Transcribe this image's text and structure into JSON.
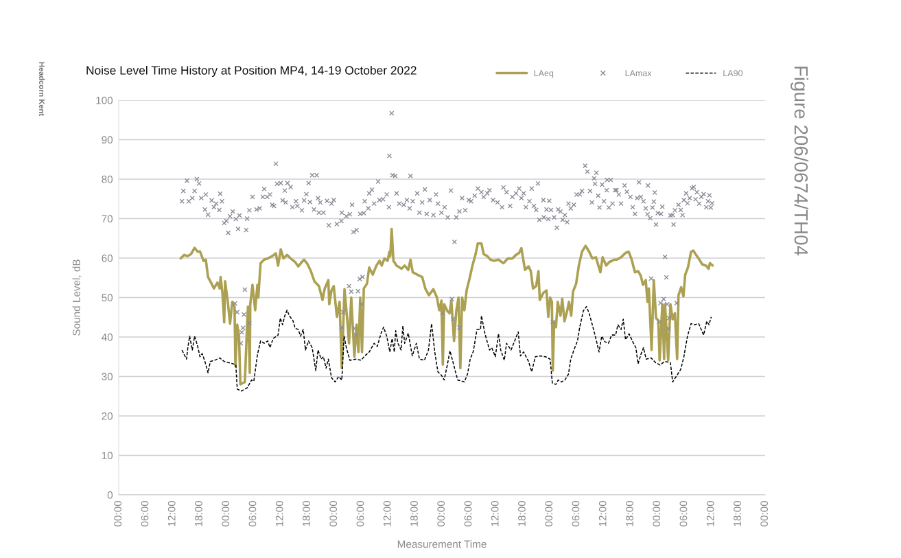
{
  "chart_data": {
    "type": "line",
    "title": "Noise Level Time History at Position MP4, 14-19 October 2022",
    "xlabel": "Measurement Time",
    "ylabel": "Sound Level, dB",
    "annotations": [
      "Headcorn Kent",
      "Figure 206/0674/TH04"
    ],
    "xlim": [
      "2022-10-14T00:00",
      "2022-10-20T00:00"
    ],
    "xticks": [
      {
        "value": "2022-10-14T00:00",
        "label": "00:00"
      },
      {
        "value": "2022-10-14T06:00",
        "label": "06:00"
      },
      {
        "value": "2022-10-14T12:00",
        "label": "12:00"
      },
      {
        "value": "2022-10-14T18:00",
        "label": "18:00"
      },
      {
        "value": "2022-10-15T00:00",
        "label": "00:00"
      },
      {
        "value": "2022-10-15T06:00",
        "label": "06:00"
      },
      {
        "value": "2022-10-15T12:00",
        "label": "12:00"
      },
      {
        "value": "2022-10-15T18:00",
        "label": "18:00"
      },
      {
        "value": "2022-10-16T00:00",
        "label": "00:00"
      },
      {
        "value": "2022-10-16T06:00",
        "label": "06:00"
      },
      {
        "value": "2022-10-16T12:00",
        "label": "12:00"
      },
      {
        "value": "2022-10-16T18:00",
        "label": "18:00"
      },
      {
        "value": "2022-10-17T00:00",
        "label": "00:00"
      },
      {
        "value": "2022-10-17T06:00",
        "label": "06:00"
      },
      {
        "value": "2022-10-17T12:00",
        "label": "12:00"
      },
      {
        "value": "2022-10-17T18:00",
        "label": "18:00"
      },
      {
        "value": "2022-10-18T00:00",
        "label": "00:00"
      },
      {
        "value": "2022-10-18T06:00",
        "label": "06:00"
      },
      {
        "value": "2022-10-18T12:00",
        "label": "12:00"
      },
      {
        "value": "2022-10-18T18:00",
        "label": "18:00"
      },
      {
        "value": "2022-10-19T00:00",
        "label": "00:00"
      },
      {
        "value": "2022-10-19T06:00",
        "label": "06:00"
      },
      {
        "value": "2022-10-19T12:00",
        "label": "12:00"
      },
      {
        "value": "2022-10-19T18:00",
        "label": "18:00"
      },
      {
        "value": "2022-10-20T00:00",
        "label": "00:00"
      }
    ],
    "ylim": [
      0,
      100
    ],
    "yticks": [
      0,
      10,
      20,
      30,
      40,
      50,
      60,
      70,
      80,
      90,
      100
    ],
    "grid": "y",
    "legend": "top right",
    "series": [
      {
        "name": "LAeq",
        "color": "#aca152",
        "line_style": "solid",
        "x": [
          "2022-10-14T13:48",
          "2022-10-14T14:36",
          "2022-10-14T15:18",
          "2022-10-14T16:06",
          "2022-10-14T16:54",
          "2022-10-14T17:36",
          "2022-10-14T18:06",
          "2022-10-14T18:54",
          "2022-10-14T19:24",
          "2022-10-14T19:54",
          "2022-10-14T20:42",
          "2022-10-14T21:12",
          "2022-10-14T22:00",
          "2022-10-14T22:30",
          "2022-10-14T22:42",
          "2022-10-14T23:06",
          "2022-10-14T23:30",
          "2022-10-14T23:42",
          "2022-10-15T00:18",
          "2022-10-15T00:48",
          "2022-10-15T01:18",
          "2022-10-15T01:48",
          "2022-10-15T02:00",
          "2022-10-15T02:24",
          "2022-10-15T02:48",
          "2022-10-15T03:06",
          "2022-10-15T03:36",
          "2022-10-15T04:06",
          "2022-10-15T04:36",
          "2022-10-15T04:48",
          "2022-10-15T05:12",
          "2022-10-15T05:18",
          "2022-10-15T05:48",
          "2022-10-15T06:24",
          "2022-10-15T06:54",
          "2022-10-15T07:06",
          "2022-10-15T07:36",
          "2022-10-15T08:24",
          "2022-10-15T09:12",
          "2022-10-15T10:12",
          "2022-10-15T11:00",
          "2022-10-15T11:30",
          "2022-10-15T12:06",
          "2022-10-15T12:42",
          "2022-10-15T13:30",
          "2022-10-15T14:18",
          "2022-10-15T15:18",
          "2022-10-15T16:00",
          "2022-10-15T16:48",
          "2022-10-15T17:18",
          "2022-10-15T18:06",
          "2022-10-15T18:48",
          "2022-10-15T19:36",
          "2022-10-15T20:36",
          "2022-10-15T21:24",
          "2022-10-15T21:54",
          "2022-10-15T22:42",
          "2022-10-15T22:54",
          "2022-10-15T23:24",
          "2022-10-15T23:54",
          "2022-10-16T00:36",
          "2022-10-16T01:12",
          "2022-10-16T01:42",
          "2022-10-16T02:18",
          "2022-10-16T03:00",
          "2022-10-16T03:18",
          "2022-10-16T03:48",
          "2022-10-16T04:30",
          "2022-10-16T05:00",
          "2022-10-16T05:24",
          "2022-10-16T05:48",
          "2022-10-16T06:12",
          "2022-10-16T06:36",
          "2022-10-16T07:18",
          "2022-10-16T07:48",
          "2022-10-16T08:36",
          "2022-10-16T09:24",
          "2022-10-16T10:06",
          "2022-10-16T10:36",
          "2022-10-16T11:12",
          "2022-10-16T11:54",
          "2022-10-16T12:18",
          "2022-10-16T12:30",
          "2022-10-16T12:48",
          "2022-10-16T13:12",
          "2022-10-16T13:54",
          "2022-10-16T15:00",
          "2022-10-16T15:42",
          "2022-10-16T16:30",
          "2022-10-16T17:00",
          "2022-10-16T17:30",
          "2022-10-16T18:30",
          "2022-10-16T19:36",
          "2022-10-16T20:18",
          "2022-10-16T21:06",
          "2022-10-16T22:06",
          "2022-10-16T22:54",
          "2022-10-16T23:24",
          "2022-10-16T23:54",
          "2022-10-17T00:12",
          "2022-10-17T00:30",
          "2022-10-17T01:12",
          "2022-10-17T01:42",
          "2022-10-17T02:06",
          "2022-10-17T02:42",
          "2022-10-17T03:12",
          "2022-10-17T03:42",
          "2022-10-17T04:06",
          "2022-10-17T04:30",
          "2022-10-17T05:00",
          "2022-10-17T05:30",
          "2022-10-17T06:12",
          "2022-10-17T06:48",
          "2022-10-17T07:30",
          "2022-10-17T08:00",
          "2022-10-17T08:48",
          "2022-10-17T09:18",
          "2022-10-17T10:06",
          "2022-10-17T10:48",
          "2022-10-17T11:36",
          "2022-10-17T12:36",
          "2022-10-17T13:42",
          "2022-10-17T14:42",
          "2022-10-17T15:42",
          "2022-10-17T16:30",
          "2022-10-17T17:12",
          "2022-10-17T17:42",
          "2022-10-17T18:30",
          "2022-10-17T19:18",
          "2022-10-17T19:48",
          "2022-10-17T20:18",
          "2022-10-17T21:00",
          "2022-10-17T21:30",
          "2022-10-17T21:48",
          "2022-10-17T22:36",
          "2022-10-17T23:18",
          "2022-10-17T23:42",
          "2022-10-18T00:06",
          "2022-10-18T00:30",
          "2022-10-18T00:42",
          "2022-10-18T01:00",
          "2022-10-18T01:24",
          "2022-10-18T01:48",
          "2022-10-18T02:24",
          "2022-10-18T02:48",
          "2022-10-18T03:18",
          "2022-10-18T03:54",
          "2022-10-18T04:18",
          "2022-10-18T04:48",
          "2022-10-18T05:12",
          "2022-10-18T05:54",
          "2022-10-18T06:30",
          "2022-10-18T07:12",
          "2022-10-18T08:00",
          "2022-10-18T08:48",
          "2022-10-18T09:30",
          "2022-10-18T10:18",
          "2022-10-18T11:18",
          "2022-10-18T11:48",
          "2022-10-18T12:36",
          "2022-10-18T13:18",
          "2022-10-18T14:24",
          "2022-10-18T14:54",
          "2022-10-18T15:54",
          "2022-10-18T16:54",
          "2022-10-18T17:36",
          "2022-10-18T18:12",
          "2022-10-18T19:00",
          "2022-10-18T19:42",
          "2022-10-18T20:18",
          "2022-10-18T20:48",
          "2022-10-18T21:24",
          "2022-10-18T21:48",
          "2022-10-18T22:06",
          "2022-10-18T22:42",
          "2022-10-18T23:12",
          "2022-10-18T23:42",
          "2022-10-19T00:12",
          "2022-10-19T00:30",
          "2022-10-19T01:06",
          "2022-10-19T01:30",
          "2022-10-19T01:42",
          "2022-10-19T02:24",
          "2022-10-19T02:54",
          "2022-10-19T03:24",
          "2022-10-19T03:54",
          "2022-10-19T04:24",
          "2022-10-19T04:42",
          "2022-10-19T05:18",
          "2022-10-19T05:48",
          "2022-10-19T06:12",
          "2022-10-19T06:48",
          "2022-10-19T07:30",
          "2022-10-19T08:00",
          "2022-10-19T08:30",
          "2022-10-19T09:12",
          "2022-10-19T10:00",
          "2022-10-19T10:48",
          "2022-10-19T11:24",
          "2022-10-19T11:42",
          "2022-10-19T12:18"
        ],
        "values": [
          59.9,
          60.8,
          60.5,
          61.0,
          62.6,
          61.6,
          61.7,
          59.3,
          59.6,
          55.2,
          53.5,
          52.3,
          53.8,
          52.3,
          55.2,
          51.2,
          43.7,
          54.1,
          48.9,
          43.4,
          48.9,
          47.7,
          32.6,
          43.1,
          40.2,
          28.0,
          28.3,
          28.6,
          43.1,
          47.7,
          30.9,
          48.3,
          53.2,
          46.8,
          53.2,
          50.0,
          58.7,
          59.6,
          59.9,
          60.5,
          61.2,
          58.1,
          62.2,
          59.9,
          60.8,
          59.9,
          59.0,
          57.9,
          59.0,
          59.6,
          58.4,
          56.7,
          54.1,
          52.9,
          49.4,
          52.3,
          54.4,
          48.3,
          51.8,
          52.9,
          45.1,
          48.9,
          32.1,
          52.1,
          43.1,
          38.4,
          50.0,
          35.0,
          43.1,
          36.2,
          50.0,
          36.2,
          52.3,
          53.5,
          57.6,
          55.8,
          58.1,
          59.3,
          58.1,
          59.9,
          59.3,
          61.6,
          60.5,
          67.4,
          59.3,
          58.1,
          57.3,
          58.1,
          57.0,
          59.6,
          56.4,
          55.8,
          55.2,
          52.3,
          50.6,
          52.1,
          50.0,
          46.8,
          49.2,
          33.0,
          48.3,
          46.6,
          46.0,
          49.2,
          39.0,
          46.6,
          50.0,
          32.1,
          50.0,
          46.8,
          51.8,
          55.0,
          58.1,
          61.0,
          63.7,
          63.7,
          61.0,
          60.5,
          59.6,
          59.3,
          59.6,
          58.7,
          59.9,
          59.9,
          60.8,
          61.3,
          62.5,
          57.0,
          57.9,
          56.7,
          52.3,
          52.9,
          56.7,
          49.4,
          51.2,
          51.8,
          45.1,
          50.0,
          48.9,
          31.5,
          43.7,
          42.5,
          48.9,
          45.4,
          49.7,
          44.0,
          46.6,
          48.9,
          45.4,
          51.5,
          53.5,
          58.1,
          61.6,
          63.1,
          61.6,
          59.9,
          60.2,
          56.4,
          60.2,
          58.1,
          59.0,
          59.6,
          59.6,
          60.2,
          61.3,
          61.6,
          59.9,
          56.4,
          56.7,
          55.5,
          53.2,
          54.4,
          48.9,
          52.3,
          36.7,
          54.4,
          44.8,
          44.2,
          34.1,
          48.3,
          34.4,
          48.3,
          34.1,
          48.3,
          44.5,
          46.0,
          34.4,
          50.6,
          52.6,
          50.3,
          55.8,
          57.6,
          61.6,
          61.9,
          61.0,
          59.9,
          58.4,
          58.1,
          57.3,
          58.7,
          58.1
        ]
      },
      {
        "name": "LAmax",
        "type": "scatter",
        "color": "#8c8c99",
        "marker": "cross",
        "x": [
          "2022-10-14T14:06",
          "2022-10-14T14:24",
          "2022-10-14T15:12",
          "2022-10-14T15:36",
          "2022-10-14T16:24",
          "2022-10-14T16:54",
          "2022-10-14T17:24",
          "2022-10-14T17:54",
          "2022-10-14T18:24",
          "2022-10-14T19:24",
          "2022-10-14T19:12",
          "2022-10-14T19:54",
          "2022-10-14T20:42",
          "2022-10-14T21:12",
          "2022-10-14T21:42",
          "2022-10-14T22:36",
          "2022-10-14T22:24",
          "2022-10-14T23:00",
          "2022-10-14T23:30",
          "2022-10-15T00:00",
          "2022-10-15T00:24",
          "2022-10-15T00:48",
          "2022-10-15T01:24",
          "2022-10-15T02:06",
          "2022-10-15T02:36",
          "2022-10-15T02:54",
          "2022-10-15T04:24",
          "2022-10-15T04:36",
          "2022-10-15T04:06",
          "2022-10-15T01:54",
          "2022-10-15T02:24",
          "2022-10-15T03:54",
          "2022-10-15T03:24",
          "2022-10-15T03:42",
          "2022-10-15T03:12",
          "2022-10-15T05:06",
          "2022-10-15T05:06",
          "2022-10-15T05:48",
          "2022-10-15T06:42",
          "2022-10-15T07:24",
          "2022-10-15T08:06",
          "2022-10-15T08:24",
          "2022-10-15T09:06",
          "2022-10-15T09:42",
          "2022-10-15T10:12",
          "2022-10-15T10:36",
          "2022-10-15T11:00",
          "2022-10-15T11:18",
          "2022-10-15T12:06",
          "2022-10-15T12:30",
          "2022-10-15T13:00",
          "2022-10-15T13:36",
          "2022-10-15T14:18",
          "2022-10-15T13:12",
          "2022-10-15T14:42",
          "2022-10-15T15:30",
          "2022-10-15T15:48",
          "2022-10-15T16:48",
          "2022-10-15T17:18",
          "2022-10-15T17:48",
          "2022-10-15T18:18",
          "2022-10-15T19:06",
          "2022-10-15T20:06",
          "2022-10-15T18:36",
          "2022-10-15T19:30",
          "2022-10-15T20:36",
          "2022-10-15T20:24",
          "2022-10-15T20:54",
          "2022-10-15T21:36",
          "2022-10-15T22:24",
          "2022-10-15T22:48",
          "2022-10-15T23:24",
          "2022-10-15T23:54",
          "2022-10-16T00:36",
          "2022-10-16T01:36",
          "2022-10-16T01:42",
          "2022-10-16T02:42",
          "2022-10-16T03:30",
          "2022-10-16T04:00",
          "2022-10-16T04:18",
          "2022-10-16T05:00",
          "2022-10-16T05:48",
          "2022-10-16T06:36",
          "2022-10-16T06:48",
          "2022-10-16T07:48",
          "2022-10-16T08:24",
          "2022-10-16T07:36",
          "2022-10-16T08:54",
          "2022-10-16T09:48",
          "2022-10-16T10:06",
          "2022-10-16T10:54",
          "2022-10-16T11:42",
          "2022-10-16T12:12",
          "2022-10-16T12:18",
          "2022-10-16T12:48",
          "2022-10-16T13:00",
          "2022-10-16T13:36",
          "2022-10-16T13:54",
          "2022-10-16T14:30",
          "2022-10-16T15:30",
          "2022-10-16T16:12",
          "2022-10-16T17:00",
          "2022-10-16T16:48",
          "2022-10-16T17:30",
          "2022-10-16T18:30",
          "2022-10-16T19:00",
          "2022-10-16T19:36",
          "2022-10-16T20:12",
          "2022-10-16T20:36",
          "2022-10-16T21:18",
          "2022-10-16T22:06",
          "2022-10-16T22:42",
          "2022-10-16T23:06",
          "2022-10-16T23:54",
          "2022-10-17T00:36",
          "2022-10-17T01:18",
          "2022-10-17T02:00",
          "2022-10-17T02:48",
          "2022-10-17T03:12",
          "2022-10-17T03:54",
          "2022-10-17T04:30",
          "2022-10-17T05:12",
          "2022-10-17T06:00",
          "2022-10-16T03:18",
          "2022-10-16T03:48",
          "2022-10-16T05:18",
          "2022-10-16T05:42",
          "2022-10-16T06:18",
          "2022-10-16T06:06",
          "2022-10-16T02:00",
          "2022-10-16T01:42",
          "2022-10-16T04:30",
          "2022-10-16T04:48",
          "2022-10-17T00:06",
          "2022-10-17T02:12",
          "2022-10-17T02:30",
          "2022-10-17T03:54",
          "2022-10-17T06:30",
          "2022-10-17T07:18",
          "2022-10-17T08:00",
          "2022-10-17T08:48",
          "2022-10-17T09:18",
          "2022-10-17T10:06",
          "2022-10-17T10:36",
          "2022-10-17T11:24",
          "2022-10-17T12:24",
          "2022-10-17T13:24",
          "2022-10-17T13:42",
          "2022-10-17T14:24",
          "2022-10-17T15:12",
          "2022-10-17T15:42",
          "2022-10-17T16:30",
          "2022-10-17T17:12",
          "2022-10-17T17:42",
          "2022-10-17T18:12",
          "2022-10-17T18:42",
          "2022-10-17T19:30",
          "2022-10-17T20:00",
          "2022-10-17T20:30",
          "2022-10-17T21:24",
          "2022-10-17T21:00",
          "2022-10-17T21:42",
          "2022-10-17T22:36",
          "2022-10-17T22:42",
          "2022-10-17T23:18",
          "2022-10-17T23:42",
          "2022-10-17T23:54",
          "2022-10-18T00:18",
          "2022-10-18T01:00",
          "2022-10-18T01:36",
          "2022-10-18T01:54",
          "2022-10-18T02:24",
          "2022-10-18T02:54",
          "2022-10-18T03:24",
          "2022-10-18T03:54",
          "2022-10-18T04:12",
          "2022-10-18T04:42",
          "2022-10-18T05:24",
          "2022-10-18T06:00",
          "2022-10-18T06:42",
          "2022-10-18T07:12",
          "2022-10-18T07:54",
          "2022-10-18T08:24",
          "2022-10-18T09:00",
          "2022-10-18T09:24",
          "2022-10-18T09:54",
          "2022-10-18T10:06",
          "2022-10-18T10:24",
          "2022-10-18T10:48",
          "2022-10-18T11:06",
          "2022-10-18T11:42",
          "2022-10-18T12:06",
          "2022-10-18T12:42",
          "2022-10-18T12:48",
          "2022-10-18T13:12",
          "2022-10-18T13:36",
          "2022-10-18T14:00",
          "2022-10-18T14:36",
          "2022-10-18T00:42",
          "2022-10-18T14:54",
          "2022-10-18T15:24",
          "2022-10-18T15:54",
          "2022-10-18T16:42",
          "2022-10-18T17:12",
          "2022-10-18T18:00",
          "2022-10-18T18:30",
          "2022-10-18T19:00",
          "2022-10-18T19:30",
          "2022-10-18T19:54",
          "2022-10-18T20:18",
          "2022-10-18T20:54",
          "2022-10-18T21:24",
          "2022-10-18T21:54",
          "2022-10-18T21:48",
          "2022-10-18T22:24",
          "2022-10-18T22:54",
          "2022-10-18T23:12",
          "2022-10-18T23:24",
          "2022-10-18T23:42",
          "2022-10-19T00:06",
          "2022-10-19T00:48",
          "2022-10-19T01:06",
          "2022-10-19T02:54",
          "2022-10-19T03:24",
          "2022-10-19T03:36",
          "2022-10-19T03:54",
          "2022-10-19T04:42",
          "2022-10-19T05:12",
          "2022-10-19T05:36",
          "2022-10-19T05:54",
          "2022-10-19T06:24",
          "2022-10-19T06:42",
          "2022-10-19T07:12",
          "2022-10-19T07:42",
          "2022-10-19T08:06",
          "2022-10-19T08:30",
          "2022-10-19T08:48",
          "2022-10-19T09:18",
          "2022-10-19T09:48",
          "2022-10-19T10:18",
          "2022-10-19T10:54",
          "2022-10-19T11:18",
          "2022-10-19T11:36",
          "2022-10-19T11:54",
          "2022-10-19T12:12",
          "2022-10-18T22:36",
          "2022-10-19T01:42",
          "2022-10-19T02:00",
          "2022-10-19T01:24",
          "2022-10-19T00:42",
          "2022-10-19T02:12",
          "2022-10-19T00:24",
          "2022-10-19T02:30",
          "2022-10-19T02:36",
          "2022-10-19T04:18"
        ],
        "values": [
          74.4,
          77.0,
          79.6,
          74.4,
          75.2,
          77.0,
          80.0,
          78.9,
          75.2,
          76.1,
          72.3,
          71.0,
          74.6,
          72.9,
          73.8,
          76.3,
          72.2,
          74.4,
          68.9,
          69.4,
          66.4,
          70.6,
          71.8,
          69.9,
          67.4,
          70.8,
          67.1,
          70.0,
          52.0,
          48.5,
          46.3,
          45.7,
          41.2,
          42.3,
          38.4,
          43.5,
          72.1,
          75.5,
          72.3,
          72.6,
          75.5,
          77.5,
          75.5,
          76.1,
          73.5,
          73.2,
          83.9,
          78.8,
          79.0,
          74.6,
          77.1,
          79.0,
          78.0,
          74.1,
          72.9,
          74.4,
          73.2,
          72.1,
          74.6,
          76.2,
          79.0,
          81.0,
          81.0,
          74.2,
          72.3,
          71.5,
          75.2,
          74.1,
          71.5,
          74.5,
          68.3,
          73.8,
          74.7,
          68.6,
          69.4,
          71.5,
          70.6,
          71.1,
          73.5,
          66.6,
          67.1,
          71.2,
          71.4,
          74.4,
          76.4,
          77.3,
          72.6,
          73.8,
          79.4,
          74.7,
          74.9,
          76.1,
          72.9,
          85.9,
          96.7,
          81.0,
          80.8,
          76.4,
          73.8,
          73.5,
          74.7,
          80.8,
          72.6,
          74.4,
          76.4,
          71.5,
          74.1,
          77.4,
          71.2,
          74.7,
          70.9,
          76.1,
          73.8,
          71.5,
          72.9,
          70.3,
          77.1,
          64.1,
          70.3,
          71.8,
          75.2,
          72.1,
          74.7,
          52.9,
          51.5,
          51.6,
          54.7,
          55.2,
          48.3,
          46.3,
          42.4,
          42.2,
          40.5,
          46.1,
          49.6,
          44.5,
          42.4,
          74.4,
          75.8,
          77.6,
          76.7,
          75.5,
          76.4,
          77.2,
          74.7,
          74.1,
          72.9,
          77.9,
          76.7,
          73.2,
          75.5,
          76.4,
          77.6,
          75.2,
          76.4,
          72.9,
          74.4,
          77.6,
          73.2,
          78.9,
          72.2,
          69.7,
          74.7,
          70.3,
          72.3,
          69.9,
          74.5,
          72.2,
          70.3,
          67.7,
          72.3,
          71.8,
          69.7,
          70.9,
          69.1,
          73.8,
          72.6,
          73.5,
          76.1,
          76.1,
          77.0,
          83.4,
          81.9,
          77.0,
          74.1,
          80.2,
          78.8,
          81.6,
          75.8,
          72.8,
          78.6,
          74.4,
          77.2,
          79.8,
          72.8,
          79.8,
          73.8,
          77.2,
          43.8,
          77.2,
          76.1,
          73.8,
          78.4,
          76.8,
          75.5,
          72.9,
          71.2,
          75.2,
          79.2,
          75.5,
          74.4,
          72.6,
          78.4,
          71.1,
          70.1,
          72.8,
          74.3,
          76.6,
          68.5,
          71.4,
          71.2,
          73.0,
          70.8,
          70.9,
          68.5,
          72.1,
          73.5,
          72.2,
          70.9,
          74.7,
          76.4,
          73.9,
          75.2,
          77.7,
          78.0,
          74.9,
          76.7,
          73.8,
          75.5,
          76.2,
          72.9,
          74.4,
          75.9,
          72.8,
          73.9,
          54.8,
          60.3,
          55.1,
          49.6,
          48.6,
          48.3,
          43.8,
          42.1,
          44.8,
          48.6
        ]
      },
      {
        "name": "LA90",
        "color": "#000000",
        "line_style": "dashed",
        "x": [
          "2022-10-14T14:06",
          "2022-10-14T14:36",
          "2022-10-14T15:06",
          "2022-10-14T15:24",
          "2022-10-14T15:48",
          "2022-10-14T16:24",
          "2022-10-14T16:54",
          "2022-10-14T17:36",
          "2022-10-14T18:06",
          "2022-10-14T18:36",
          "2022-10-14T19:12",
          "2022-10-14T19:54",
          "2022-10-14T20:24",
          "2022-10-14T21:24",
          "2022-10-14T22:30",
          "2022-10-14T23:30",
          "2022-10-15T00:30",
          "2022-10-15T01:30",
          "2022-10-15T02:06",
          "2022-10-15T02:24",
          "2022-10-15T03:18",
          "2022-10-15T04:36",
          "2022-10-15T05:36",
          "2022-10-15T06:06",
          "2022-10-15T06:54",
          "2022-10-15T07:36",
          "2022-10-15T08:24",
          "2022-10-15T09:12",
          "2022-10-15T09:42",
          "2022-10-15T10:24",
          "2022-10-15T11:30",
          "2022-10-15T12:00",
          "2022-10-15T12:30",
          "2022-10-15T13:00",
          "2022-10-15T13:30",
          "2022-10-15T14:00",
          "2022-10-15T14:48",
          "2022-10-15T15:18",
          "2022-10-15T16:00",
          "2022-10-15T16:30",
          "2022-10-15T17:06",
          "2022-10-15T17:36",
          "2022-10-15T18:18",
          "2022-10-15T19:06",
          "2022-10-15T19:54",
          "2022-10-15T20:24",
          "2022-10-15T21:06",
          "2022-10-15T21:36",
          "2022-10-15T22:12",
          "2022-10-15T22:42",
          "2022-10-15T23:24",
          "2022-10-16T00:12",
          "2022-10-16T01:00",
          "2022-10-16T01:42",
          "2022-10-16T02:12",
          "2022-10-16T02:42",
          "2022-10-16T03:30",
          "2022-10-16T04:48",
          "2022-10-16T06:00",
          "2022-10-16T06:48",
          "2022-10-16T07:48",
          "2022-10-16T08:54",
          "2022-10-16T09:36",
          "2022-10-16T10:24",
          "2022-10-16T11:00",
          "2022-10-16T11:42",
          "2022-10-16T12:24",
          "2022-10-16T12:54",
          "2022-10-16T13:24",
          "2022-10-16T13:42",
          "2022-10-16T14:12",
          "2022-10-16T14:54",
          "2022-10-16T15:18",
          "2022-10-16T15:42",
          "2022-10-16T16:30",
          "2022-10-16T17:24",
          "2022-10-16T18:18",
          "2022-10-16T19:00",
          "2022-10-16T20:06",
          "2022-10-16T21:00",
          "2022-10-16T21:42",
          "2022-10-16T22:24",
          "2022-10-16T23:06",
          "2022-10-16T23:54",
          "2022-10-17T00:30",
          "2022-10-17T01:12",
          "2022-10-17T01:48",
          "2022-10-17T02:42",
          "2022-10-17T03:30",
          "2022-10-17T04:12",
          "2022-10-17T05:00",
          "2022-10-17T05:42",
          "2022-10-17T06:18",
          "2022-10-17T07:00",
          "2022-10-17T07:48",
          "2022-10-17T08:36",
          "2022-10-17T08:48",
          "2022-10-17T09:36",
          "2022-10-17T10:36",
          "2022-10-17T11:06",
          "2022-10-17T11:54",
          "2022-10-17T12:36",
          "2022-10-17T13:06",
          "2022-10-17T13:54",
          "2022-10-17T14:24",
          "2022-10-17T15:24",
          "2022-10-17T16:12",
          "2022-10-17T17:00",
          "2022-10-17T17:30",
          "2022-10-17T18:12",
          "2022-10-17T19:18",
          "2022-10-17T20:00",
          "2022-10-17T20:48",
          "2022-10-17T21:48",
          "2022-10-17T23:06",
          "2022-10-18T00:06",
          "2022-10-18T00:36",
          "2022-10-18T01:24",
          "2022-10-18T01:54",
          "2022-10-18T02:36",
          "2022-10-18T03:24",
          "2022-10-18T04:12",
          "2022-10-18T04:42",
          "2022-10-18T05:24",
          "2022-10-18T06:12",
          "2022-10-18T06:42",
          "2022-10-18T07:30",
          "2022-10-18T08:12",
          "2022-10-18T08:48",
          "2022-10-18T09:30",
          "2022-10-18T10:18",
          "2022-10-18T11:00",
          "2022-10-18T11:36",
          "2022-10-18T12:18",
          "2022-10-18T13:06",
          "2022-10-18T13:48",
          "2022-10-18T14:42",
          "2022-10-18T15:12",
          "2022-10-18T15:54",
          "2022-10-18T16:24",
          "2022-10-18T16:54",
          "2022-10-18T17:42",
          "2022-10-18T18:30",
          "2022-10-18T19:12",
          "2022-10-18T19:42",
          "2022-10-18T20:18",
          "2022-10-18T20:54",
          "2022-10-18T21:30",
          "2022-10-18T22:36",
          "2022-10-18T23:36",
          "2022-10-19T00:36",
          "2022-10-19T01:36",
          "2022-10-19T02:54",
          "2022-10-19T03:24",
          "2022-10-19T04:12",
          "2022-10-19T05:12",
          "2022-10-19T05:54",
          "2022-10-19T06:42",
          "2022-10-19T07:30",
          "2022-10-19T08:12",
          "2022-10-19T09:12",
          "2022-10-19T10:18",
          "2022-10-19T11:00",
          "2022-10-19T11:30",
          "2022-10-19T12:00"
        ],
        "values": [
          36.7,
          35.5,
          34.4,
          37.3,
          40.2,
          36.7,
          40.2,
          37.6,
          35.0,
          35.8,
          33.8,
          30.9,
          33.8,
          34.1,
          34.7,
          33.8,
          33.5,
          33.2,
          32.9,
          26.8,
          26.3,
          27.1,
          29.1,
          28.8,
          35.5,
          39.0,
          38.4,
          39.0,
          37.3,
          39.6,
          40.5,
          44.8,
          43.1,
          45.4,
          46.8,
          45.4,
          44.2,
          42.2,
          41.9,
          40.2,
          41.9,
          36.7,
          39.0,
          37.3,
          31.5,
          36.7,
          34.4,
          35.0,
          32.1,
          34.4,
          29.7,
          28.6,
          30.0,
          29.1,
          40.2,
          37.3,
          34.1,
          34.4,
          34.1,
          35.2,
          36.2,
          38.4,
          37.6,
          40.8,
          42.5,
          40.2,
          36.2,
          39.6,
          36.2,
          41.6,
          38.4,
          36.7,
          42.8,
          38.4,
          41.0,
          35.2,
          38.4,
          34.4,
          34.1,
          36.7,
          43.4,
          36.2,
          31.2,
          30.3,
          29.1,
          32.9,
          36.5,
          32.6,
          29.1,
          28.9,
          28.6,
          30.6,
          34.4,
          36.4,
          41.9,
          41.9,
          45.4,
          40.8,
          36.7,
          37.3,
          35.0,
          40.8,
          36.7,
          34.1,
          38.4,
          36.7,
          39.0,
          41.3,
          35.2,
          36.2,
          33.8,
          31.2,
          35.0,
          35.2,
          35.0,
          34.4,
          28.3,
          28.0,
          29.1,
          28.6,
          29.1,
          30.6,
          34.4,
          36.7,
          39.0,
          42.5,
          46.6,
          47.7,
          46.0,
          43.1,
          39.6,
          36.2,
          40.2,
          38.8,
          38.4,
          40.5,
          40.5,
          43.1,
          41.9,
          44.5,
          39.3,
          40.8,
          38.8,
          37.3,
          33.2,
          35.5,
          37.3,
          34.4,
          34.7,
          33.5,
          32.9,
          33.8,
          33.5,
          28.6,
          30.0,
          31.8,
          35.0,
          40.2,
          43.4,
          43.1,
          43.4,
          40.5,
          44.0,
          43.1,
          45.1
        ]
      }
    ]
  }
}
